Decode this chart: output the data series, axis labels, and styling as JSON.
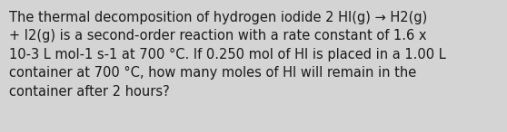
{
  "text": "The thermal decomposition of hydrogen iodide 2 HI(g) → H2(g)\n+ I2(g) is a second-order reaction with a rate constant of 1.6 x\n10-3 L mol-1 s-1 at 700 °C. If 0.250 mol of HI is placed in a 1.00 L\ncontainer at 700 °C, how many moles of HI will remain in the\ncontainer after 2 hours?",
  "background_color": "#d4d4d4",
  "text_color": "#1a1a1a",
  "font_size": 10.5,
  "fig_width": 5.58,
  "fig_height": 1.46,
  "dpi": 100
}
